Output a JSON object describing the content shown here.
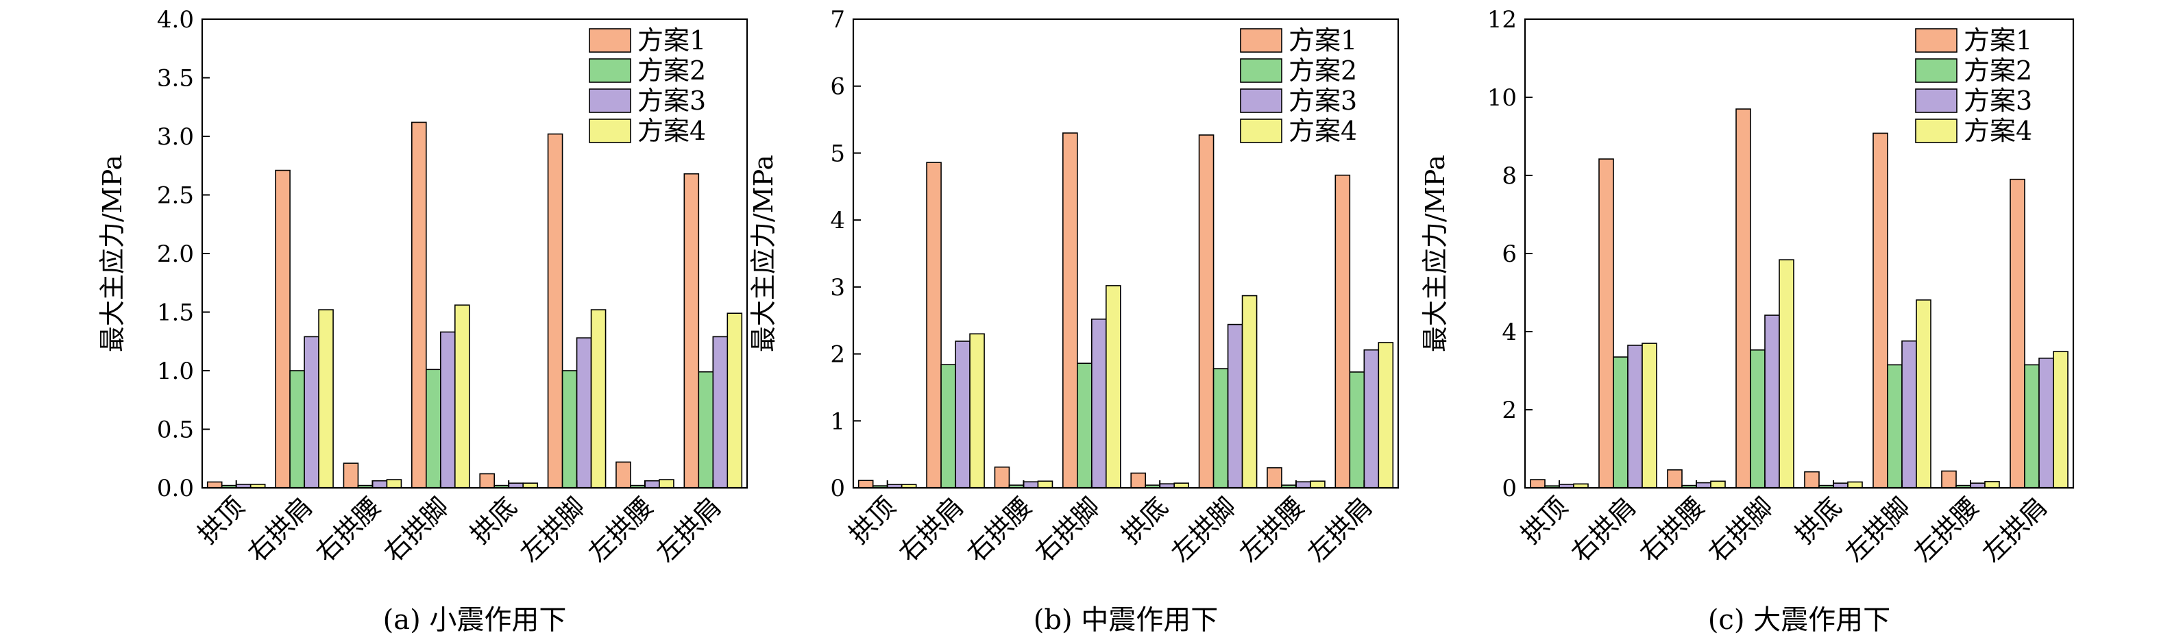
{
  "series_colors": [
    "#F7B08A",
    "#8FD68F",
    "#B7A6DA",
    "#F3F38A"
  ],
  "chart_data": [
    {
      "type": "bar",
      "caption": "(a) 小震作用下",
      "ylabel": "最大主应力/MPa",
      "ylim": [
        0,
        4.0
      ],
      "yticks": [
        "0.0",
        "0.5",
        "1.0",
        "1.5",
        "2.0",
        "2.5",
        "3.0",
        "3.5",
        "4.0"
      ],
      "categories": [
        "拱顶",
        "右拱肩",
        "右拱腰",
        "右拱脚",
        "拱底",
        "左拱脚",
        "左拱腰",
        "左拱肩"
      ],
      "legend_position": "top-right",
      "series": [
        {
          "name": "方案1",
          "values": [
            0.05,
            2.71,
            0.21,
            3.12,
            0.12,
            3.02,
            0.22,
            2.68
          ]
        },
        {
          "name": "方案2",
          "values": [
            0.02,
            1.0,
            0.02,
            1.01,
            0.02,
            1.0,
            0.02,
            0.99
          ]
        },
        {
          "name": "方案3",
          "values": [
            0.03,
            1.29,
            0.06,
            1.33,
            0.04,
            1.28,
            0.06,
            1.29
          ]
        },
        {
          "name": "方案4",
          "values": [
            0.03,
            1.52,
            0.07,
            1.56,
            0.04,
            1.52,
            0.07,
            1.49
          ]
        }
      ]
    },
    {
      "type": "bar",
      "caption": "(b) 中震作用下",
      "ylabel": "最大主应力/MPa",
      "ylim": [
        0,
        7
      ],
      "yticks": [
        "0",
        "1",
        "2",
        "3",
        "4",
        "5",
        "6",
        "7"
      ],
      "categories": [
        "拱顶",
        "右拱肩",
        "右拱腰",
        "右拱脚",
        "拱底",
        "左拱脚",
        "左拱腰",
        "左拱肩"
      ],
      "legend_position": "top-right",
      "series": [
        {
          "name": "方案1",
          "values": [
            0.11,
            4.86,
            0.31,
            5.3,
            0.22,
            5.27,
            0.3,
            4.67
          ]
        },
        {
          "name": "方案2",
          "values": [
            0.03,
            1.84,
            0.04,
            1.86,
            0.04,
            1.78,
            0.04,
            1.73
          ]
        },
        {
          "name": "方案3",
          "values": [
            0.05,
            2.19,
            0.09,
            2.52,
            0.06,
            2.44,
            0.09,
            2.06
          ]
        },
        {
          "name": "方案4",
          "values": [
            0.05,
            2.3,
            0.1,
            3.02,
            0.07,
            2.87,
            0.1,
            2.17
          ]
        }
      ]
    },
    {
      "type": "bar",
      "caption": "(c) 大震作用下",
      "ylabel": "最大主应力/MPa",
      "ylim": [
        0,
        12
      ],
      "yticks": [
        "0",
        "2",
        "4",
        "6",
        "8",
        "10",
        "12"
      ],
      "categories": [
        "拱顶",
        "右拱肩",
        "右拱腰",
        "右拱脚",
        "拱底",
        "左拱脚",
        "左拱腰",
        "左拱肩"
      ],
      "legend_position": "top-right",
      "series": [
        {
          "name": "方案1",
          "values": [
            0.21,
            8.42,
            0.46,
            9.7,
            0.41,
            9.08,
            0.43,
            7.9
          ]
        },
        {
          "name": "方案2",
          "values": [
            0.05,
            3.35,
            0.06,
            3.53,
            0.06,
            3.15,
            0.06,
            3.15
          ]
        },
        {
          "name": "方案3",
          "values": [
            0.09,
            3.65,
            0.13,
            4.42,
            0.12,
            3.76,
            0.12,
            3.32
          ]
        },
        {
          "name": "方案4",
          "values": [
            0.1,
            3.7,
            0.17,
            5.84,
            0.15,
            4.81,
            0.16,
            3.49
          ]
        }
      ]
    }
  ]
}
